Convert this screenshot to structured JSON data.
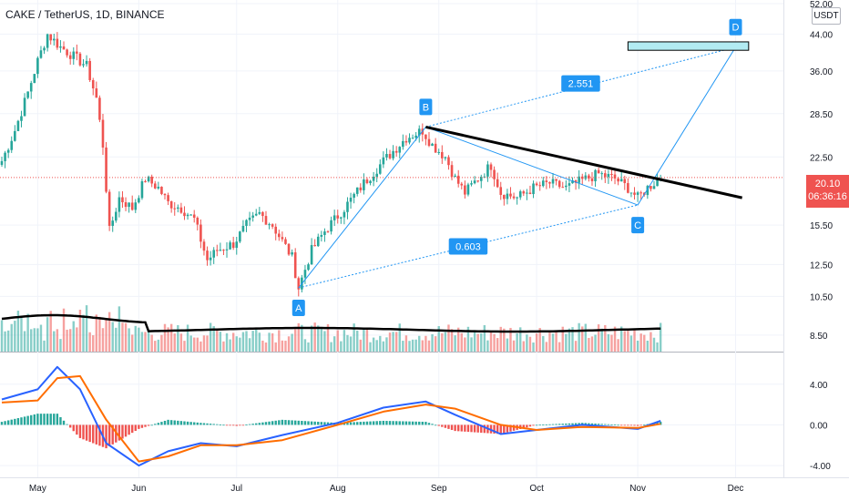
{
  "header": {
    "title": "CAKE / TetherUS, 1D, BINANCE",
    "unit": "USDT"
  },
  "last_price": {
    "value": "20.10",
    "countdown": "06:36:16"
  },
  "colors": {
    "up": "#26a69a",
    "down": "#ef5350",
    "pattern": "#2196f3",
    "volume_ma": "#000000",
    "macd": "#2962ff",
    "signal": "#ff6d00",
    "target_box": "#b2ebf2"
  },
  "chart_data": [
    {
      "type": "candlestick",
      "title": "CAKE / TetherUS, 1D, BINANCE",
      "y_scale": "log",
      "ylim": [
        8.0,
        52.0
      ],
      "y_ticks": [
        "52.00",
        "44.00",
        "36.00",
        "28.50",
        "22.50",
        "15.50",
        "12.50",
        "10.50",
        "8.50"
      ],
      "x_ticks": [
        "May",
        "Jun",
        "Jul",
        "Aug",
        "Sep",
        "Oct",
        "Nov",
        "Dec"
      ],
      "close_path": [
        [
          "Apr 20",
          22.0
        ],
        [
          "Apr 24",
          26.0
        ],
        [
          "Apr 28",
          32.0
        ],
        [
          "May 1",
          38.0
        ],
        [
          "May 4",
          44.0
        ],
        [
          "May 8",
          41.0
        ],
        [
          "May 12",
          39.0
        ],
        [
          "May 16",
          37.0
        ],
        [
          "May 19",
          31.0
        ],
        [
          "May 21",
          24.0
        ],
        [
          "May 23",
          15.0
        ],
        [
          "May 26",
          18.0
        ],
        [
          "May 30",
          17.0
        ],
        [
          "Jun 3",
          20.0
        ],
        [
          "Jun 7",
          19.0
        ],
        [
          "Jun 10",
          17.5
        ],
        [
          "Jun 14",
          17.0
        ],
        [
          "Jun 18",
          16.0
        ],
        [
          "Jun 22",
          12.8
        ],
        [
          "Jun 25",
          13.5
        ],
        [
          "Jun 30",
          14.0
        ],
        [
          "Jul 4",
          15.5
        ],
        [
          "Jul 8",
          16.5
        ],
        [
          "Jul 12",
          15.5
        ],
        [
          "Jul 18",
          13.0
        ],
        [
          "Jul 20",
          11.0
        ],
        [
          "Jul 24",
          13.5
        ],
        [
          "Jul 28",
          15.0
        ],
        [
          "Aug 3",
          17.0
        ],
        [
          "Aug 9",
          19.5
        ],
        [
          "Aug 15",
          22.0
        ],
        [
          "Aug 22",
          25.0
        ],
        [
          "Aug 27",
          26.0
        ],
        [
          "Aug 30",
          24.0
        ],
        [
          "Sep 3",
          22.5
        ],
        [
          "Sep 6",
          20.0
        ],
        [
          "Sep 9",
          18.5
        ],
        [
          "Sep 13",
          20.0
        ],
        [
          "Sep 17",
          21.5
        ],
        [
          "Sep 20",
          18.5
        ],
        [
          "Sep 25",
          18.0
        ],
        [
          "Sep 30",
          19.0
        ],
        [
          "Oct 5",
          19.5
        ],
        [
          "Oct 10",
          19.0
        ],
        [
          "Oct 15",
          19.8
        ],
        [
          "Oct 20",
          20.5
        ],
        [
          "Oct 25",
          20.0
        ],
        [
          "Oct 29",
          19.0
        ],
        [
          "Nov 1",
          18.0
        ],
        [
          "Nov 4",
          19.0
        ],
        [
          "Nov 8",
          20.1
        ]
      ],
      "pattern_points": [
        {
          "label": "A",
          "x": "Jul 20",
          "y": 11.0
        },
        {
          "label": "B",
          "x": "Aug 28",
          "y": 26.5
        },
        {
          "label": "C",
          "x": "Nov 1",
          "y": 17.3
        },
        {
          "label": "D",
          "x": "Dec 1",
          "y": 41.0
        }
      ],
      "fib_ratios": [
        "2.551",
        "0.603"
      ],
      "trendline": {
        "from": [
          "Aug 28",
          26.5
        ],
        "to": [
          "Dec 3",
          18.0
        ]
      },
      "target_zone": {
        "x_from": "Oct 29",
        "x_to": "Dec 5",
        "y_from": 40.3,
        "y_to": 42.2
      },
      "volume_ma_note": "black moving average over volume bars"
    },
    {
      "type": "line",
      "indicator": "MACD",
      "ylim": [
        -4.8,
        6.4
      ],
      "y_ticks": [
        "4.00",
        "0.00",
        "-4.00"
      ],
      "x": [
        "Apr 20",
        "May 1",
        "May 7",
        "May 14",
        "May 22",
        "Jun 1",
        "Jun 10",
        "Jun 20",
        "Jul 1",
        "Jul 15",
        "Aug 1",
        "Aug 15",
        "Aug 28",
        "Sep 6",
        "Sep 20",
        "Oct 1",
        "Oct 15",
        "Nov 1",
        "Nov 8"
      ],
      "series": [
        {
          "values": [
            2.5,
            3.5,
            5.7,
            3.5,
            -1.8,
            -4.0,
            -2.6,
            -1.8,
            -2.1,
            -1.0,
            0.2,
            1.7,
            2.3,
            1.0,
            -0.9,
            -0.5,
            0.0,
            -0.4,
            0.4
          ]
        },
        {
          "values": [
            2.2,
            2.4,
            4.6,
            4.8,
            0.5,
            -3.6,
            -3.1,
            -2.0,
            -2.0,
            -1.5,
            0.0,
            1.3,
            2.0,
            1.6,
            0.0,
            -0.5,
            -0.2,
            -0.3,
            0.1
          ]
        }
      ]
    }
  ]
}
